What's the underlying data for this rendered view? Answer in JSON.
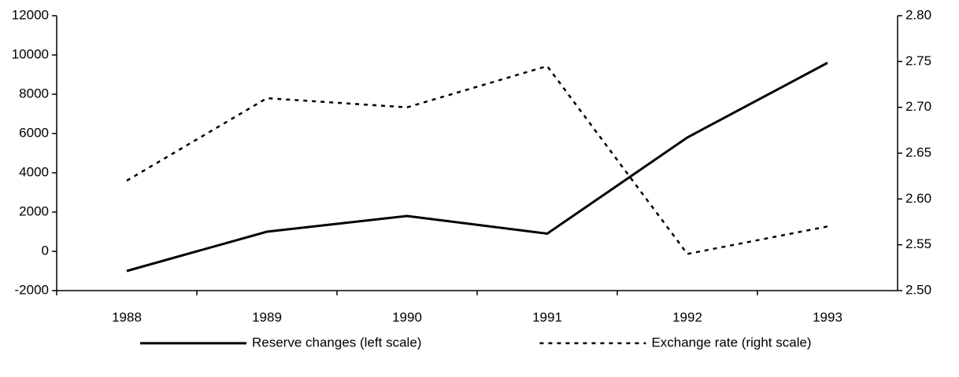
{
  "chart_data": {
    "type": "line",
    "categories": [
      "1988",
      "1989",
      "1990",
      "1991",
      "1992",
      "1993"
    ],
    "series": [
      {
        "name": "Reserve changes (left scale)",
        "color": "#000000",
        "dash": "solid",
        "values": [
          -1000,
          1000,
          1800,
          900,
          5800,
          9600
        ]
      },
      {
        "name": "Exchange rate (right scale)",
        "color": "#000000",
        "dash": "dashed",
        "axis": "y2",
        "values": [
          2.62,
          2.71,
          2.7,
          2.745,
          2.54,
          2.57
        ]
      }
    ],
    "ylim": [
      -2000,
      12000
    ],
    "yticks": [
      -2000,
      0,
      2000,
      4000,
      6000,
      8000,
      10000,
      12000
    ],
    "y2lim": [
      2.5,
      2.8
    ],
    "y2ticks": [
      {
        "value": 2.5,
        "label": "2.50"
      },
      2.55,
      {
        "value": 2.6,
        "label": "2.60"
      },
      2.65,
      {
        "value": 2.7,
        "label": "2.70"
      },
      2.75,
      {
        "value": 2.8,
        "label": "2.80"
      }
    ],
    "legend": "bottom"
  }
}
